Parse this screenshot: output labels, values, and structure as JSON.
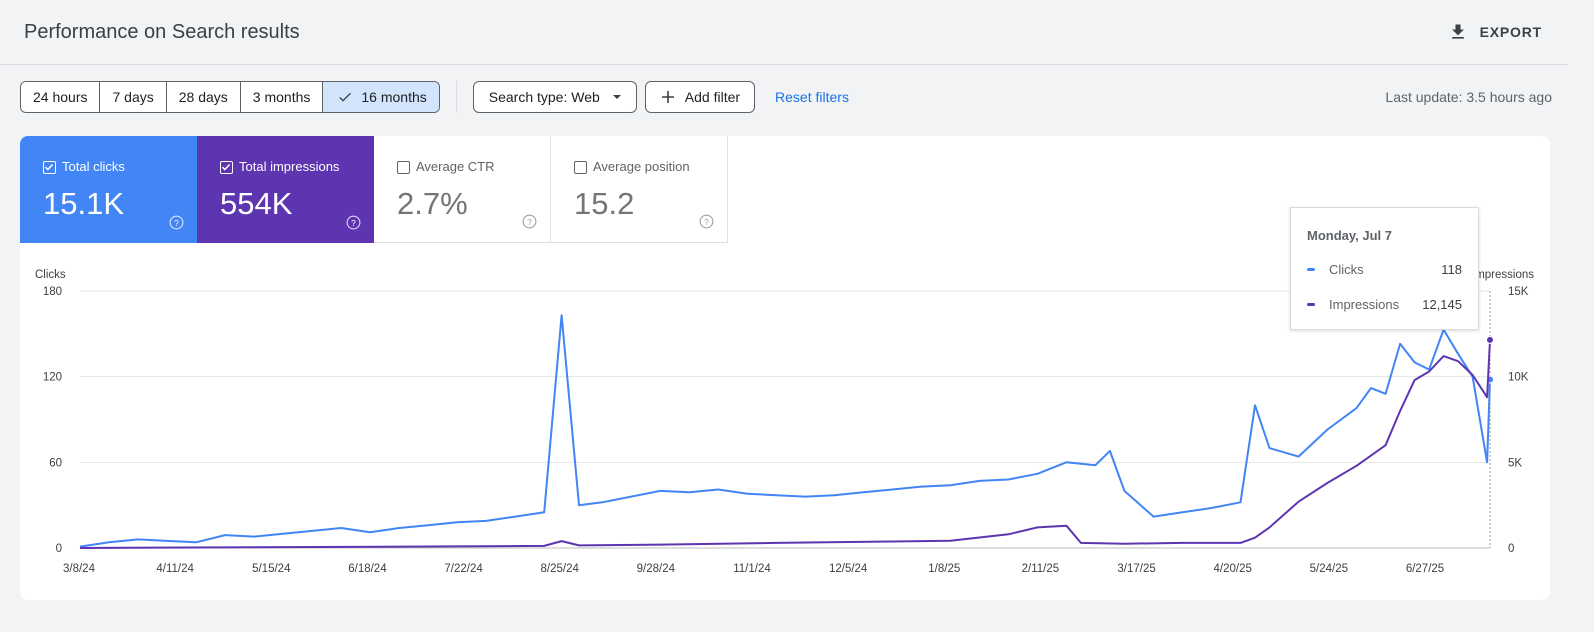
{
  "header": {
    "title": "Performance on Search results",
    "export_label": "EXPORT"
  },
  "toolbar": {
    "ranges": [
      "24 hours",
      "7 days",
      "28 days",
      "3 months",
      "16 months"
    ],
    "selected_range": "16 months",
    "search_type": "Search type: Web",
    "add_filter": "Add filter",
    "reset_filters": "Reset filters",
    "last_update": "Last update: 3.5 hours ago"
  },
  "metrics": [
    {
      "label": "Total clicks",
      "value": "15.1K",
      "checked": true,
      "color": "#4285f4"
    },
    {
      "label": "Total impressions",
      "value": "554K",
      "checked": true,
      "color": "#5e35b1"
    },
    {
      "label": "Average CTR",
      "value": "2.7%",
      "checked": false
    },
    {
      "label": "Average position",
      "value": "15.2",
      "checked": false
    }
  ],
  "tooltip": {
    "date": "Monday, Jul 7",
    "rows": [
      {
        "label": "Clicks",
        "value": "118",
        "color": "#4285f4"
      },
      {
        "label": "Impressions",
        "value": "12,145",
        "color": "#5e35b1"
      }
    ]
  },
  "chart_data": {
    "type": "line",
    "ylabel_left": "Clicks",
    "ylabel_right": "Impressions",
    "left_ticks": [
      "0",
      "60",
      "120",
      "180"
    ],
    "right_ticks": [
      "0",
      "5K",
      "10K",
      "15K"
    ],
    "ylim_left": [
      0,
      180
    ],
    "ylim_right": [
      0,
      15000
    ],
    "x_ticks": [
      "3/8/24",
      "4/11/24",
      "5/15/24",
      "6/18/24",
      "7/22/24",
      "8/25/24",
      "9/28/24",
      "11/1/24",
      "12/5/24",
      "1/8/25",
      "2/11/25",
      "3/17/25",
      "4/20/25",
      "5/24/25",
      "6/27/25"
    ],
    "x_start": "3/8/24",
    "x_end": "7/7/25",
    "grid": true,
    "series": [
      {
        "name": "Clicks",
        "color": "#4285f4",
        "axis": "left",
        "points": [
          [
            0,
            1
          ],
          [
            10,
            4
          ],
          [
            20,
            6
          ],
          [
            30,
            5
          ],
          [
            40,
            4
          ],
          [
            50,
            9
          ],
          [
            60,
            8
          ],
          [
            70,
            10
          ],
          [
            80,
            12
          ],
          [
            90,
            14
          ],
          [
            100,
            11
          ],
          [
            110,
            14
          ],
          [
            120,
            16
          ],
          [
            130,
            18
          ],
          [
            140,
            19
          ],
          [
            150,
            22
          ],
          [
            160,
            25
          ],
          [
            166,
            163
          ],
          [
            172,
            30
          ],
          [
            180,
            32
          ],
          [
            190,
            36
          ],
          [
            200,
            40
          ],
          [
            210,
            39
          ],
          [
            220,
            41
          ],
          [
            230,
            38
          ],
          [
            240,
            37
          ],
          [
            250,
            36
          ],
          [
            260,
            37
          ],
          [
            270,
            39
          ],
          [
            280,
            41
          ],
          [
            290,
            43
          ],
          [
            300,
            44
          ],
          [
            310,
            47
          ],
          [
            320,
            48
          ],
          [
            330,
            52
          ],
          [
            340,
            60
          ],
          [
            350,
            58
          ],
          [
            355,
            68
          ],
          [
            360,
            40
          ],
          [
            370,
            22
          ],
          [
            380,
            25
          ],
          [
            390,
            28
          ],
          [
            400,
            32
          ],
          [
            405,
            100
          ],
          [
            410,
            70
          ],
          [
            420,
            64
          ],
          [
            430,
            83
          ],
          [
            440,
            98
          ],
          [
            445,
            112
          ],
          [
            450,
            108
          ],
          [
            455,
            143
          ],
          [
            460,
            130
          ],
          [
            465,
            125
          ],
          [
            470,
            153
          ],
          [
            475,
            136
          ],
          [
            480,
            120
          ],
          [
            485,
            60
          ],
          [
            486,
            118
          ]
        ]
      },
      {
        "name": "Impressions",
        "color": "#5e35b1",
        "axis": "right",
        "points": [
          [
            0,
            0
          ],
          [
            60,
            40
          ],
          [
            120,
            90
          ],
          [
            160,
            120
          ],
          [
            166,
            400
          ],
          [
            172,
            150
          ],
          [
            200,
            200
          ],
          [
            240,
            300
          ],
          [
            280,
            380
          ],
          [
            300,
            420
          ],
          [
            320,
            800
          ],
          [
            330,
            1200
          ],
          [
            340,
            1300
          ],
          [
            345,
            300
          ],
          [
            360,
            250
          ],
          [
            380,
            300
          ],
          [
            400,
            300
          ],
          [
            405,
            600
          ],
          [
            410,
            1200
          ],
          [
            420,
            2700
          ],
          [
            430,
            3800
          ],
          [
            440,
            4800
          ],
          [
            450,
            6000
          ],
          [
            455,
            8000
          ],
          [
            460,
            9800
          ],
          [
            465,
            10300
          ],
          [
            470,
            11200
          ],
          [
            475,
            10900
          ],
          [
            480,
            10100
          ],
          [
            485,
            8800
          ],
          [
            486,
            12145
          ]
        ]
      }
    ]
  }
}
